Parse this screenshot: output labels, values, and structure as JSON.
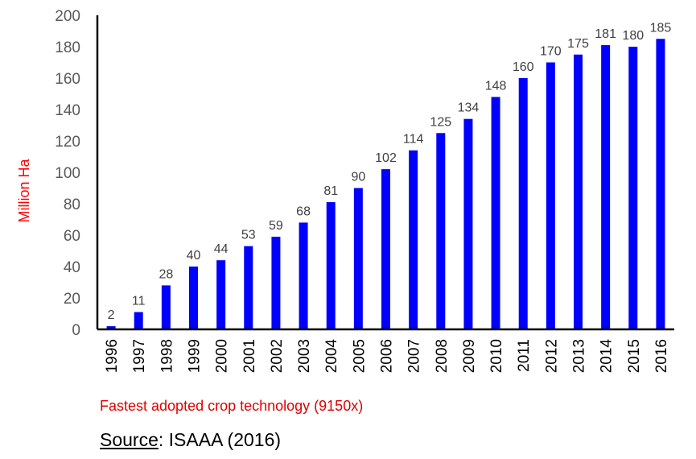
{
  "chart_data": {
    "type": "bar",
    "title": "",
    "xlabel": "",
    "ylabel": "Million Ha",
    "ylim": [
      0,
      200
    ],
    "yticks": [
      0,
      20,
      40,
      60,
      80,
      100,
      120,
      140,
      160,
      180,
      200
    ],
    "grid": false,
    "legend": "none",
    "bar_color": "#0000ff",
    "categories": [
      "1996",
      "1997",
      "1998",
      "1999",
      "2000",
      "2001",
      "2002",
      "2003",
      "2004",
      "2005",
      "2006",
      "2007",
      "2008",
      "2009",
      "2010",
      "2011",
      "2012",
      "2013",
      "2014",
      "2015",
      "2016"
    ],
    "values": [
      2,
      11,
      28,
      40,
      44,
      53,
      59,
      68,
      81,
      90,
      102,
      114,
      125,
      134,
      148,
      160,
      170,
      175,
      181,
      180,
      185
    ],
    "data_labels": [
      "2",
      "11",
      "28",
      "40",
      "44",
      "53",
      "59",
      "68",
      "81",
      "90",
      "102",
      "114",
      "125",
      "134",
      "148",
      "160",
      "170",
      "175",
      "181",
      "180",
      "185"
    ]
  },
  "annotation": "Fastest adopted crop technology (9150x)",
  "source": {
    "label": "Source",
    "separator": ":",
    "text": "ISAAA (2016)"
  }
}
